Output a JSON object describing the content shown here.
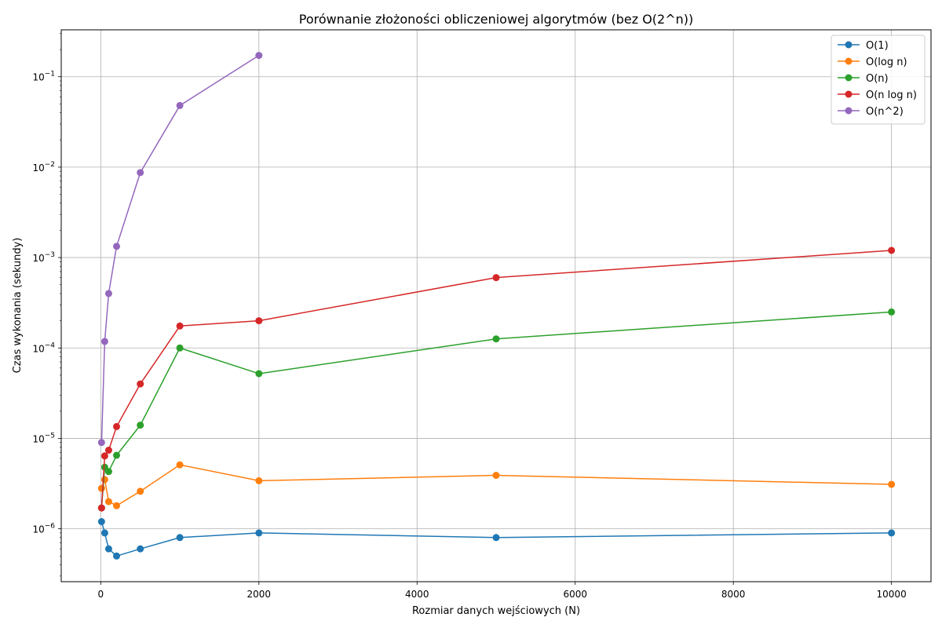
{
  "chart_data": {
    "type": "line",
    "title": "Porównanie złożoności obliczeniowej algorytmów (bez O(2^n))",
    "xlabel": "Rozmiar danych wejściowych (N)",
    "ylabel": "Czas wykonania (sekundy)",
    "xscale": "linear",
    "yscale": "log",
    "xlim": [
      -500,
      10500
    ],
    "ylim": [
      2.6e-07,
      0.33
    ],
    "x_ticks": [
      0,
      2000,
      4000,
      6000,
      8000,
      10000
    ],
    "x_tick_labels": [
      "0",
      "2000",
      "4000",
      "6000",
      "8000",
      "10000"
    ],
    "y_ticks": [
      1e-06,
      1e-05,
      0.0001,
      0.001,
      0.01,
      0.1
    ],
    "y_tick_labels": [
      {
        "base": "10",
        "exp": "−6"
      },
      {
        "base": "10",
        "exp": "−5"
      },
      {
        "base": "10",
        "exp": "−4"
      },
      {
        "base": "10",
        "exp": "−3"
      },
      {
        "base": "10",
        "exp": "−2"
      },
      {
        "base": "10",
        "exp": "−1"
      }
    ],
    "grid": true,
    "legend_position": "top-right",
    "series": [
      {
        "name": "O(1)",
        "color": "#1f77b4",
        "x": [
          10,
          50,
          100,
          200,
          500,
          1000,
          2000,
          5000,
          10000
        ],
        "y": [
          1.2e-06,
          9e-07,
          6e-07,
          5e-07,
          6e-07,
          8e-07,
          9e-07,
          8e-07,
          9e-07
        ]
      },
      {
        "name": "O(log n)",
        "color": "#ff7f0e",
        "x": [
          10,
          50,
          100,
          200,
          500,
          1000,
          2000,
          5000,
          10000
        ],
        "y": [
          2.8e-06,
          3.5e-06,
          2e-06,
          1.8e-06,
          2.6e-06,
          5.1e-06,
          3.4e-06,
          3.9e-06,
          3.1e-06
        ]
      },
      {
        "name": "O(n)",
        "color": "#2ca02c",
        "x": [
          10,
          50,
          100,
          200,
          500,
          1000,
          2000,
          5000,
          10000
        ],
        "y": [
          1.7e-06,
          4.8e-06,
          4.3e-06,
          6.5e-06,
          1.4e-05,
          0.0001,
          5.2e-05,
          0.000126,
          0.00025
        ]
      },
      {
        "name": "O(n log n)",
        "color": "#d62728",
        "x": [
          10,
          50,
          100,
          200,
          500,
          1000,
          2000,
          5000,
          10000
        ],
        "y": [
          1.7e-06,
          6.4e-06,
          7.4e-06,
          1.35e-05,
          4e-05,
          0.000175,
          0.0002,
          0.0006,
          0.0012
        ]
      },
      {
        "name": "O(n^2)",
        "color": "#9467bd",
        "x": [
          10,
          50,
          100,
          200,
          500,
          1000,
          2000
        ],
        "y": [
          9e-06,
          0.000118,
          0.0004,
          0.00133,
          0.0087,
          0.048,
          0.172
        ]
      }
    ]
  }
}
